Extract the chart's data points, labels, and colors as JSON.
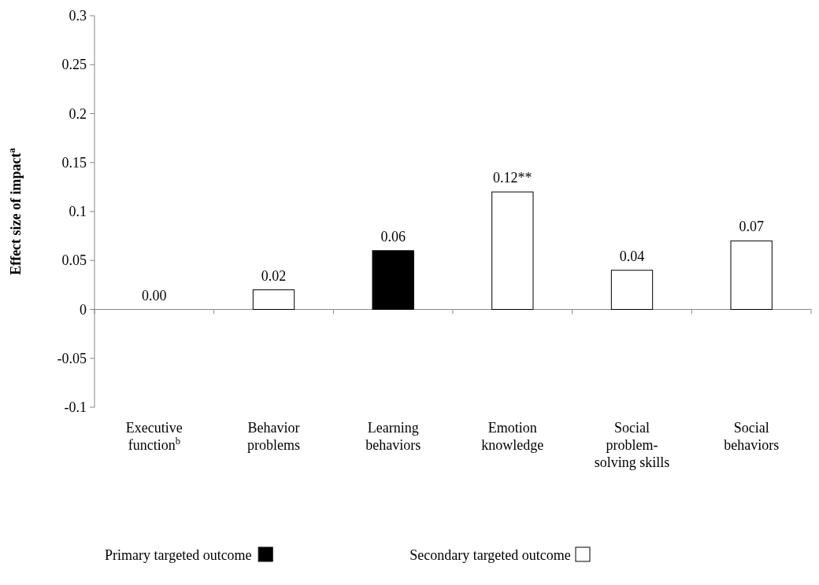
{
  "chart_data": {
    "type": "bar",
    "ylabel": "Effect size of impact$^{a}$",
    "categories": [
      "Executive function$^{b}$",
      "Behavior problems",
      "Learning behaviors",
      "Emotion knowledge",
      "Social problem-solving skills",
      "Social behaviors"
    ],
    "stacked": true,
    "series": [
      {
        "name": "Primary targeted outcome",
        "color": "#000000",
        "values": [
          null,
          null,
          0.06,
          null,
          null,
          null
        ],
        "value_labels": [
          null,
          null,
          "0.06",
          null,
          null,
          null
        ]
      },
      {
        "name": "Secondary targeted outcome",
        "color": "#ffffff",
        "values": [
          0,
          0.02,
          null,
          0.12,
          0.04,
          0.07
        ],
        "value_labels": [
          "0.00",
          "0.02",
          null,
          "0.12**",
          "0.04",
          "0.07"
        ]
      }
    ],
    "ylim": [
      -0.1,
      0.3
    ],
    "yticks": [
      -0.1,
      -0.05,
      0,
      0.05,
      0.1,
      0.15,
      0.2,
      0.25,
      0.3
    ],
    "legend": "bottom"
  }
}
